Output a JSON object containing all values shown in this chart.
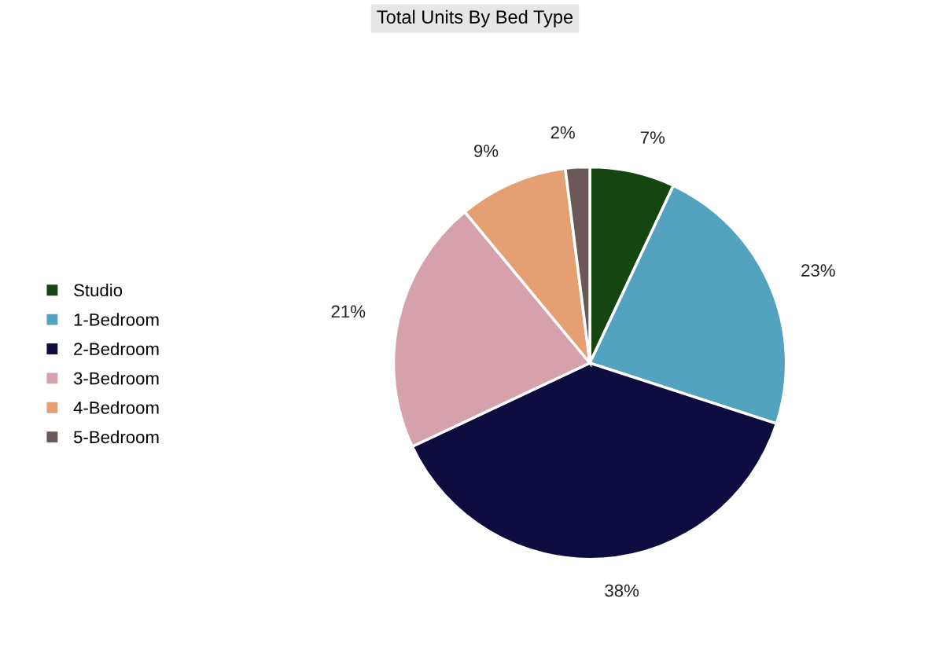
{
  "chart_data": {
    "type": "pie",
    "title": "Total Units By Bed Type",
    "categories": [
      "Studio",
      "1-Bedroom",
      "2-Bedroom",
      "3-Bedroom",
      "4-Bedroom",
      "5-Bedroom"
    ],
    "values": [
      7,
      23,
      38,
      21,
      9,
      2
    ],
    "value_labels": [
      "7%",
      "23%",
      "38%",
      "21%",
      "9%",
      "2%"
    ],
    "colors": [
      "#154510",
      "#53a3c0",
      "#0e0b3e",
      "#d5a1ad",
      "#e49f72",
      "#6b5858"
    ],
    "legend": "left"
  }
}
